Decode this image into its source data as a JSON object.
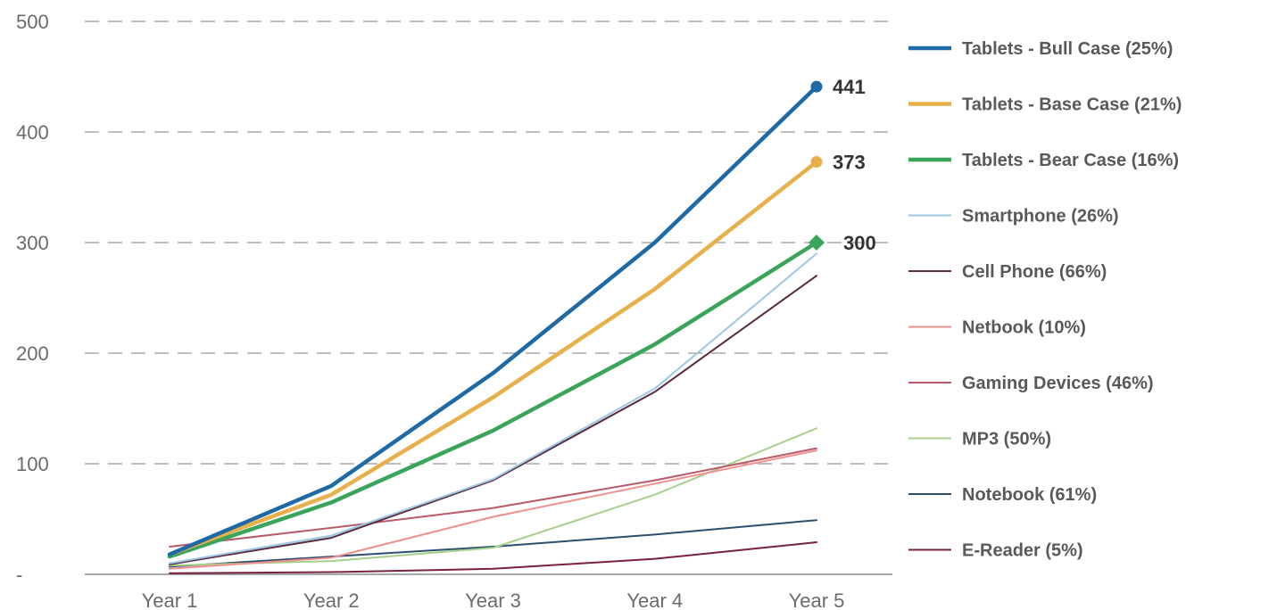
{
  "chart_data": {
    "type": "line",
    "categories": [
      "Year 1",
      "Year 2",
      "Year 3",
      "Year 4",
      "Year 5"
    ],
    "yticks": [
      "-",
      "100",
      "200",
      "300",
      "400",
      "500"
    ],
    "ylim": [
      0,
      500
    ],
    "grid": true,
    "legend_position": "right",
    "series": [
      {
        "name": "Tablets - Bull Case (25%)",
        "values": [
          18,
          80,
          182,
          300,
          441
        ],
        "color": "#1f6aa5",
        "width": 4.5,
        "marker": "circle",
        "end_label": "441"
      },
      {
        "name": "Tablets - Base Case (21%)",
        "values": [
          18,
          72,
          160,
          258,
          373
        ],
        "color": "#e8b04a",
        "width": 4.5,
        "marker": "circle",
        "end_label": "373"
      },
      {
        "name": "Tablets - Bear Case (16%)",
        "values": [
          16,
          65,
          130,
          208,
          300
        ],
        "color": "#3aa55a",
        "width": 4.5,
        "marker": "diamond",
        "end_label": "300"
      },
      {
        "name": "Smartphone (26%)",
        "values": [
          10,
          35,
          86,
          168,
          290
        ],
        "color": "#9cc7e2",
        "width": 2,
        "marker": "none",
        "end_label": ""
      },
      {
        "name": "Cell Phone (66%)",
        "values": [
          9,
          33,
          85,
          165,
          270
        ],
        "color": "#5c2a3e",
        "width": 2,
        "marker": "none",
        "end_label": ""
      },
      {
        "name": "Netbook (10%)",
        "values": [
          5,
          15,
          52,
          82,
          112
        ],
        "color": "#f0908e",
        "width": 2,
        "marker": "none",
        "end_label": ""
      },
      {
        "name": "Gaming Devices (46%)",
        "values": [
          25,
          42,
          60,
          85,
          114
        ],
        "color": "#b95a6a",
        "width": 2,
        "marker": "none",
        "end_label": ""
      },
      {
        "name": "MP3 (50%)",
        "values": [
          8,
          12,
          24,
          72,
          132
        ],
        "color": "#a8d08d",
        "width": 2,
        "marker": "none",
        "end_label": ""
      },
      {
        "name": "Notebook (61%)",
        "values": [
          7,
          16,
          25,
          36,
          49
        ],
        "color": "#2c4f70",
        "width": 2,
        "marker": "none",
        "end_label": ""
      },
      {
        "name": "E-Reader (5%)",
        "values": [
          1,
          2,
          5,
          14,
          29
        ],
        "color": "#7a2040",
        "width": 2,
        "marker": "none",
        "end_label": ""
      }
    ]
  }
}
